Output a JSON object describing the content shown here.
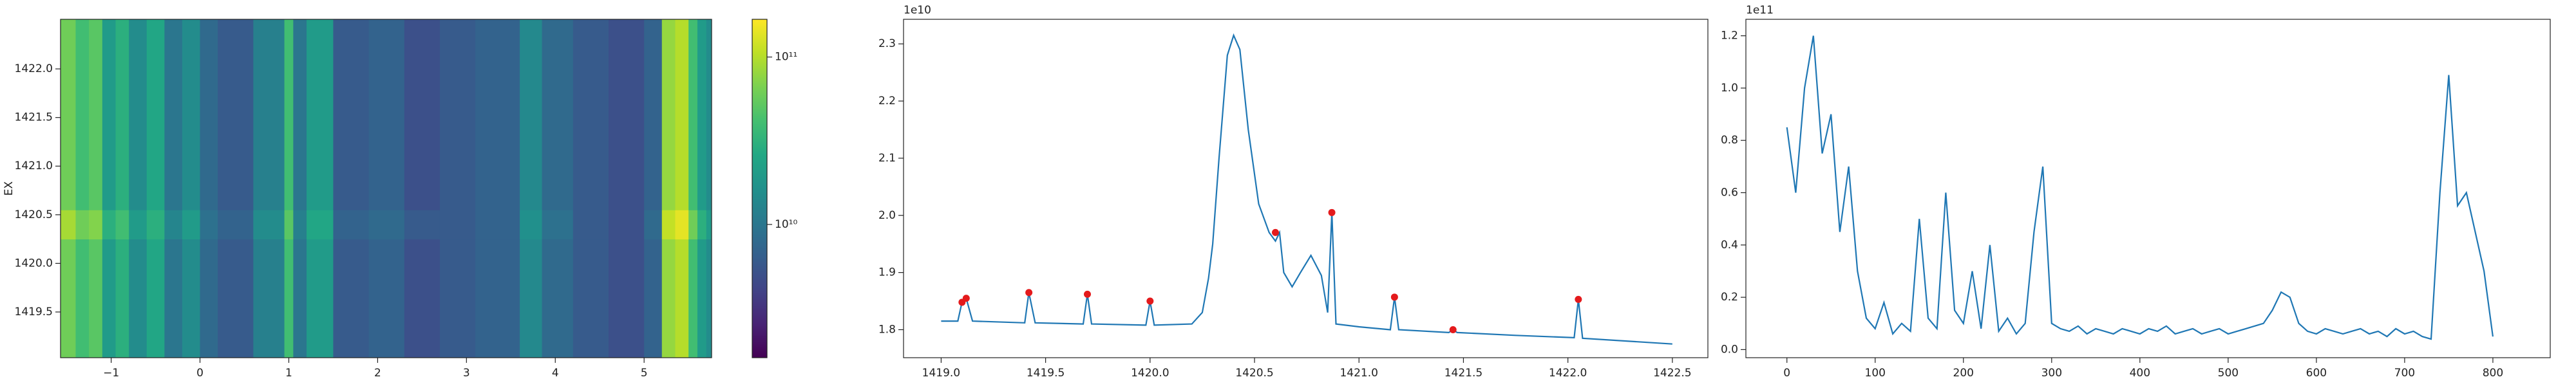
{
  "chart_data": [
    {
      "type": "heatmap",
      "colormap": "viridis",
      "ylabel": "EX",
      "x_edges": [
        -1.57,
        -1.4,
        -1.25,
        -1.1,
        -0.95,
        -0.8,
        -0.6,
        -0.4,
        -0.2,
        0,
        0.2,
        0.6,
        0.95,
        1.05,
        1.2,
        1.5,
        1.9,
        2.3,
        2.7,
        3.1,
        3.6,
        3.85,
        4.2,
        4.6,
        5.0,
        5.2,
        5.35,
        5.5,
        5.6,
        5.7,
        5.76
      ],
      "y_edges": [
        1419.03,
        1420.25,
        1420.55,
        1422.51
      ],
      "z": [
        [
          60000000000.0,
          40000000000.0,
          50000000000.0,
          20000000000.0,
          30000000000.0,
          15000000000.0,
          25000000000.0,
          10000000000.0,
          15000000000.0,
          8000000000.0,
          6000000000.0,
          12000000000.0,
          40000000000.0,
          10000000000.0,
          20000000000.0,
          6000000000.0,
          7000000000.0,
          5000000000.0,
          6000000000.0,
          7000000000.0,
          14000000000.0,
          8000000000.0,
          6000000000.0,
          5000000000.0,
          7000000000.0,
          80000000000.0,
          100000000000.0,
          40000000000.0,
          20000000000.0,
          15000000000.0
        ],
        [
          90000000000.0,
          60000000000.0,
          70000000000.0,
          30000000000.0,
          40000000000.0,
          20000000000.0,
          30000000000.0,
          13000000000.0,
          20000000000.0,
          9000000000.0,
          7000000000.0,
          15000000000.0,
          50000000000.0,
          12000000000.0,
          25000000000.0,
          7000000000.0,
          8000000000.0,
          6000000000.0,
          6000000000.0,
          7000000000.0,
          16000000000.0,
          9000000000.0,
          6000000000.0,
          5000000000.0,
          8000000000.0,
          110000000000.0,
          140000000000.0,
          60000000000.0,
          30000000000.0,
          20000000000.0
        ],
        [
          60000000000.0,
          40000000000.0,
          50000000000.0,
          20000000000.0,
          30000000000.0,
          15000000000.0,
          25000000000.0,
          10000000000.0,
          15000000000.0,
          8000000000.0,
          6000000000.0,
          12000000000.0,
          40000000000.0,
          10000000000.0,
          20000000000.0,
          6000000000.0,
          7000000000.0,
          5000000000.0,
          6000000000.0,
          7000000000.0,
          14000000000.0,
          8000000000.0,
          6000000000.0,
          5000000000.0,
          7000000000.0,
          80000000000.0,
          100000000000.0,
          40000000000.0,
          20000000000.0,
          15000000000.0
        ]
      ],
      "xlim": [
        -1.57,
        5.76
      ],
      "ylim": [
        1419.03,
        1422.51
      ],
      "xticks": [
        {
          "value": -1,
          "label": "−1"
        },
        0,
        1,
        2,
        3,
        4,
        5
      ],
      "yticks": [
        1419.5,
        {
          "value": 1420,
          "label": "1420.0"
        },
        1420.5,
        {
          "value": 1421,
          "label": "1421.0"
        },
        1421.5,
        {
          "value": 1422,
          "label": "1422.0"
        }
      ],
      "colorbar": {
        "scale": "log",
        "lim": [
          1600000000.0,
          168000000000.0
        ],
        "ticks": [
          {
            "value": 10000000000.0,
            "label": "10¹⁰"
          },
          {
            "value": 100000000000.0,
            "label": "10¹¹"
          }
        ]
      }
    },
    {
      "type": "line",
      "color": "#1f77b4",
      "offset_label": "1e10",
      "x": [
        1419.0,
        1419.08,
        1419.1,
        1419.12,
        1419.15,
        1419.4,
        1419.42,
        1419.45,
        1419.68,
        1419.7,
        1419.72,
        1419.98,
        1420.0,
        1420.02,
        1420.2,
        1420.25,
        1420.28,
        1420.3,
        1420.33,
        1420.37,
        1420.4,
        1420.43,
        1420.47,
        1420.52,
        1420.57,
        1420.6,
        1420.62,
        1420.64,
        1420.68,
        1420.72,
        1420.77,
        1420.82,
        1420.85,
        1420.87,
        1420.89,
        1421.0,
        1421.15,
        1421.17,
        1421.19,
        1421.43,
        1421.45,
        1421.47,
        1421.75,
        1422.03,
        1422.05,
        1422.07,
        1422.5
      ],
      "values": [
        1.815,
        1.815,
        1.848,
        1.855,
        1.815,
        1.812,
        1.865,
        1.812,
        1.81,
        1.862,
        1.81,
        1.808,
        1.85,
        1.808,
        1.81,
        1.83,
        1.89,
        1.95,
        2.1,
        2.28,
        2.315,
        2.29,
        2.15,
        2.02,
        1.97,
        1.955,
        1.97,
        1.9,
        1.875,
        1.9,
        1.93,
        1.895,
        1.83,
        2.005,
        1.81,
        1.805,
        1.8,
        1.857,
        1.8,
        1.795,
        1.8,
        1.795,
        1.79,
        1.786,
        1.853,
        1.785,
        1.775
      ],
      "peaks": {
        "color": "#e41a1c",
        "x": [
          1419.1,
          1419.12,
          1419.42,
          1419.7,
          1420.0,
          1420.6,
          1420.87,
          1421.17,
          1421.45,
          1422.05
        ],
        "values": [
          1.848,
          1.855,
          1.865,
          1.862,
          1.85,
          1.97,
          2.005,
          1.857,
          1.8,
          1.853
        ]
      },
      "xlim": [
        1418.82,
        1422.67
      ],
      "ylim": [
        1.751,
        2.343
      ],
      "xticks": [
        {
          "value": 1419,
          "label": "1419.0"
        },
        1419.5,
        {
          "value": 1420,
          "label": "1420.0"
        },
        1420.5,
        {
          "value": 1421,
          "label": "1421.0"
        },
        1421.5,
        {
          "value": 1422,
          "label": "1422.0"
        },
        1422.5
      ],
      "yticks": [
        1.8,
        1.9,
        {
          "value": 2,
          "label": "2.0"
        },
        2.1,
        2.2,
        2.3
      ]
    },
    {
      "type": "line",
      "color": "#1f77b4",
      "offset_label": "1e11",
      "x": [
        0,
        10,
        20,
        30,
        40,
        50,
        60,
        70,
        80,
        90,
        100,
        110,
        120,
        130,
        140,
        150,
        160,
        170,
        180,
        190,
        200,
        210,
        220,
        230,
        240,
        250,
        260,
        270,
        280,
        290,
        300,
        310,
        320,
        330,
        340,
        350,
        360,
        370,
        380,
        390,
        400,
        410,
        420,
        430,
        440,
        450,
        460,
        470,
        480,
        490,
        500,
        510,
        520,
        530,
        540,
        550,
        560,
        570,
        580,
        590,
        600,
        610,
        620,
        630,
        640,
        650,
        660,
        670,
        680,
        690,
        700,
        710,
        720,
        730,
        740,
        750,
        760,
        770,
        780,
        790,
        800
      ],
      "values": [
        0.85,
        0.6,
        1.0,
        1.2,
        0.75,
        0.9,
        0.45,
        0.7,
        0.3,
        0.12,
        0.08,
        0.18,
        0.06,
        0.1,
        0.07,
        0.5,
        0.12,
        0.08,
        0.6,
        0.15,
        0.1,
        0.3,
        0.08,
        0.4,
        0.07,
        0.12,
        0.06,
        0.1,
        0.45,
        0.7,
        0.1,
        0.08,
        0.07,
        0.09,
        0.06,
        0.08,
        0.07,
        0.06,
        0.08,
        0.07,
        0.06,
        0.08,
        0.07,
        0.09,
        0.06,
        0.07,
        0.08,
        0.06,
        0.07,
        0.08,
        0.06,
        0.07,
        0.08,
        0.09,
        0.1,
        0.15,
        0.22,
        0.2,
        0.1,
        0.07,
        0.06,
        0.08,
        0.07,
        0.06,
        0.07,
        0.08,
        0.06,
        0.07,
        0.05,
        0.08,
        0.06,
        0.07,
        0.05,
        0.04,
        0.6,
        1.05,
        0.55,
        0.6,
        0.45,
        0.3,
        0.05
      ],
      "xlim": [
        -46.5,
        865
      ],
      "ylim": [
        -0.031,
        1.263
      ],
      "xticks": [
        0,
        100,
        200,
        300,
        400,
        500,
        600,
        700,
        800
      ],
      "yticks": [
        {
          "value": 0,
          "label": "0.0"
        },
        0.2,
        0.4,
        0.6,
        0.8,
        {
          "value": 1,
          "label": "1.0"
        },
        1.2
      ]
    }
  ]
}
